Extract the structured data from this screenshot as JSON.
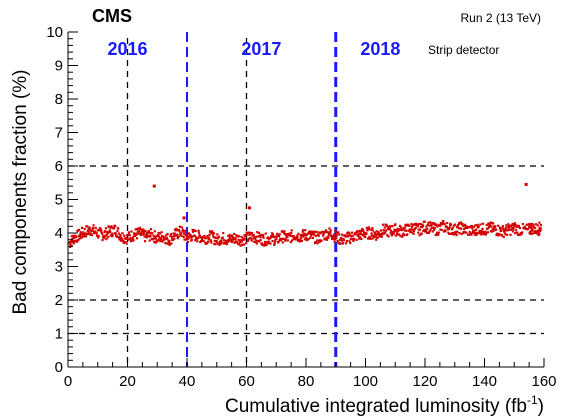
{
  "chart_data": {
    "type": "scatter",
    "experiment": "CMS",
    "run_label": "Run 2 (13 TeV)",
    "detector_label": "Strip detector",
    "xlabel": "Cumulative integrated luminosity (fb",
    "xlabel_sup": "-1",
    "xlabel_close": ")",
    "ylabel": "Bad components fraction (%)",
    "xlim": [
      0,
      160
    ],
    "ylim": [
      0,
      10
    ],
    "xticks": [
      0,
      20,
      40,
      60,
      80,
      100,
      120,
      140,
      160
    ],
    "yticks": [
      0,
      1,
      2,
      3,
      4,
      5,
      6,
      7,
      8,
      9,
      10
    ],
    "grid": false,
    "colors": {
      "points": "#d40000",
      "year_boundary": "#1a1aff",
      "year_text": "#1a1aff",
      "reference": "#000000"
    },
    "year_boundaries": [
      40,
      90
    ],
    "years": [
      {
        "label": "2016",
        "x_center": 20
      },
      {
        "label": "2017",
        "x_center": 65
      },
      {
        "label": "2018",
        "x_center": 105
      }
    ],
    "reference_lines": {
      "vertical": [
        20,
        60
      ],
      "horizontal": [
        1,
        2,
        6
      ]
    },
    "series": [
      {
        "values": [
          [
            0.5,
            3.7
          ],
          [
            2,
            3.85
          ],
          [
            4,
            3.95
          ],
          [
            6,
            4.05
          ],
          [
            8,
            4.1
          ],
          [
            10,
            4.0
          ],
          [
            12,
            3.95
          ],
          [
            14,
            4.05
          ],
          [
            16,
            4.1
          ],
          [
            18,
            3.9
          ],
          [
            20,
            3.85
          ],
          [
            22,
            3.95
          ],
          [
            24,
            4.0
          ],
          [
            26,
            3.9
          ],
          [
            28,
            3.95
          ],
          [
            29,
            5.4
          ],
          [
            30,
            3.85
          ],
          [
            32,
            3.9
          ],
          [
            34,
            3.8
          ],
          [
            36,
            3.95
          ],
          [
            38,
            4.05
          ],
          [
            39,
            4.45
          ],
          [
            40,
            3.85
          ],
          [
            42,
            3.95
          ],
          [
            44,
            3.9
          ],
          [
            46,
            3.85
          ],
          [
            48,
            3.9
          ],
          [
            50,
            3.8
          ],
          [
            52,
            3.85
          ],
          [
            54,
            3.8
          ],
          [
            56,
            3.85
          ],
          [
            58,
            3.8
          ],
          [
            60,
            3.85
          ],
          [
            61,
            4.75
          ],
          [
            62,
            3.9
          ],
          [
            64,
            3.85
          ],
          [
            66,
            3.8
          ],
          [
            68,
            3.85
          ],
          [
            70,
            3.8
          ],
          [
            72,
            3.9
          ],
          [
            74,
            3.85
          ],
          [
            76,
            3.95
          ],
          [
            78,
            3.9
          ],
          [
            80,
            3.95
          ],
          [
            82,
            3.9
          ],
          [
            84,
            3.85
          ],
          [
            86,
            3.95
          ],
          [
            88,
            4.0
          ],
          [
            90,
            3.9
          ],
          [
            92,
            3.8
          ],
          [
            94,
            3.85
          ],
          [
            96,
            3.9
          ],
          [
            98,
            3.95
          ],
          [
            100,
            4.0
          ],
          [
            102,
            4.0
          ],
          [
            104,
            3.95
          ],
          [
            106,
            4.1
          ],
          [
            108,
            4.05
          ],
          [
            110,
            4.1
          ],
          [
            112,
            4.05
          ],
          [
            114,
            4.1
          ],
          [
            116,
            4.15
          ],
          [
            118,
            4.1
          ],
          [
            120,
            4.2
          ],
          [
            122,
            4.15
          ],
          [
            124,
            4.1
          ],
          [
            126,
            4.2
          ],
          [
            128,
            4.15
          ],
          [
            130,
            4.1
          ],
          [
            132,
            4.15
          ],
          [
            134,
            4.1
          ],
          [
            136,
            4.05
          ],
          [
            138,
            4.15
          ],
          [
            140,
            4.1
          ],
          [
            142,
            4.15
          ],
          [
            144,
            4.1
          ],
          [
            146,
            4.05
          ],
          [
            148,
            4.1
          ],
          [
            150,
            4.15
          ],
          [
            152,
            4.1
          ],
          [
            154,
            5.45
          ],
          [
            155,
            4.1
          ],
          [
            156,
            4.15
          ],
          [
            158,
            4.1
          ],
          [
            159,
            4.2
          ]
        ]
      }
    ]
  }
}
